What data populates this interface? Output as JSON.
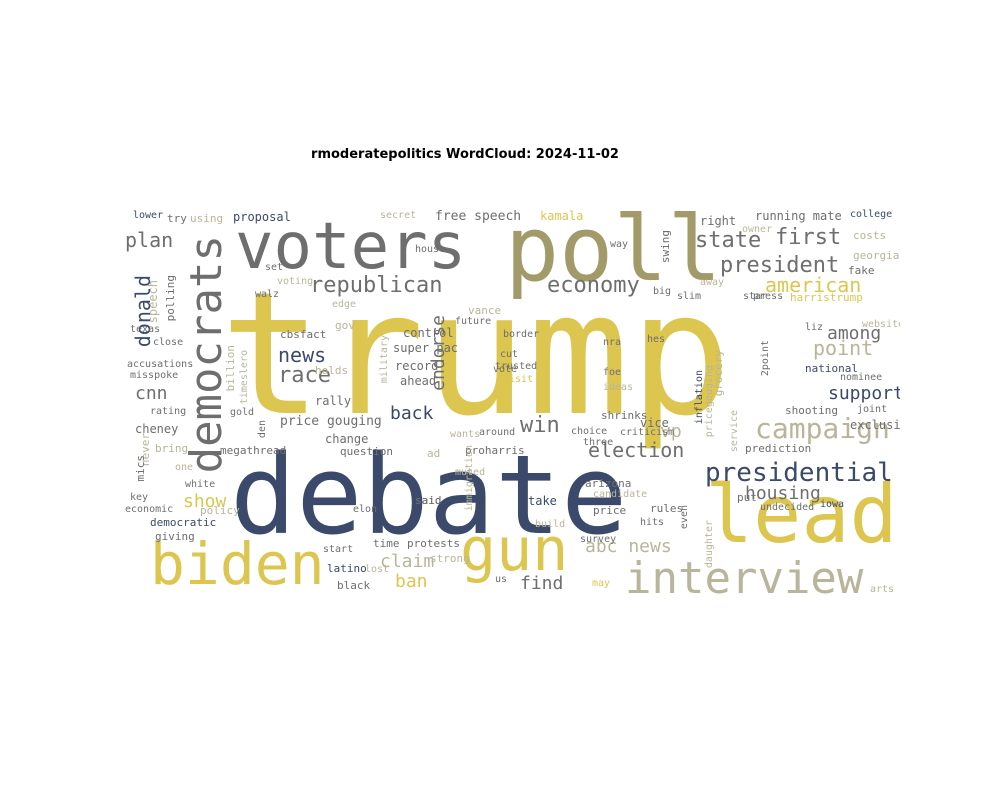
{
  "title": "rmoderatepolitics WordCloud: 2024-11-02",
  "palette": {
    "gold": "#dcc650",
    "navy": "#3b4a6b",
    "grey": "#6e6e6e",
    "olive": "#a39a6a",
    "light": "#b9b59a"
  },
  "words": [
    "trump",
    "debate",
    "poll",
    "voters",
    "lead",
    "biden",
    "gun",
    "interview",
    "democrats",
    "campaign",
    "presidential",
    "republican",
    "economy",
    "president",
    "state",
    "first",
    "american",
    "plan",
    "news",
    "race",
    "win",
    "election",
    "endorse",
    "back",
    "support",
    "housing",
    "point",
    "among",
    "donald",
    "cnn",
    "show",
    "claim",
    "abc news",
    "vp",
    "ban",
    "find",
    "free speech",
    "kamala",
    "running mate",
    "college",
    "costs",
    "georgia",
    "fake",
    "right",
    "proposal",
    "lower",
    "try",
    "using",
    "secret",
    "swing",
    "house",
    "vance",
    "future",
    "border",
    "control",
    "super pac",
    "cut",
    "trusted",
    "visit",
    "record",
    "ahead",
    "vote",
    "rally",
    "price gouging",
    "change",
    "question",
    "megathread",
    "proharris",
    "prediction",
    "shooting",
    "joint",
    "national",
    "nominee",
    "exclusive",
    "criticism",
    "choice",
    "three",
    "arizona",
    "rules",
    "even",
    "price",
    "survey",
    "put",
    "undecided",
    "iowa",
    "take",
    "said",
    "elon",
    "policy",
    "giving",
    "democratic",
    "economic",
    "key",
    "cheney",
    "rating",
    "accusations",
    "misspoke",
    "close",
    "texas",
    "polling",
    "walz",
    "speech",
    "billion",
    "timeslero",
    "gold",
    "bring",
    "never",
    "white",
    "build",
    "latino",
    "black",
    "time",
    "protests",
    "strong",
    "arts",
    "us",
    "may",
    "cbsfact",
    "gov",
    "holds",
    "edge",
    "harristrump",
    "star",
    "slim",
    "big",
    "away",
    "press",
    "liz",
    "website",
    "grocery",
    "foe",
    "ideas",
    "hes",
    "immigration",
    "military",
    "service",
    "inflation",
    "pricegouging",
    "vice",
    "shrinks",
    "wants",
    "muted",
    "around",
    "candidate",
    "hits",
    "daughter",
    "nra",
    "mics",
    "den",
    "one",
    "lost",
    "start",
    "2point",
    "owner",
    "way",
    "set",
    "voting",
    "ad",
    "said"
  ]
}
